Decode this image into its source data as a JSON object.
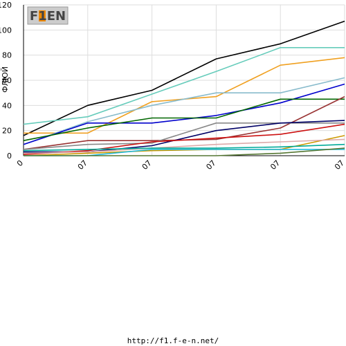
{
  "logo": {
    "text": "F1EN"
  },
  "footer": {
    "url": "http://f1.f-e-n.net/"
  },
  "chart_data": {
    "type": "line",
    "ylabel": "ФЛЮЙ",
    "xlabel": "",
    "ylim": [
      0,
      120
    ],
    "yticks": [
      0,
      20,
      40,
      60,
      80,
      100,
      120
    ],
    "x": [
      0,
      1,
      2,
      3,
      4,
      5
    ],
    "xtick_labels": [
      "0",
      "07",
      "07",
      "07",
      "07",
      "07"
    ],
    "grid": true,
    "legend": "none",
    "series": [
      {
        "color": "#000000",
        "values": [
          16,
          40,
          52,
          77,
          89,
          107
        ]
      },
      {
        "color": "#66ccbb",
        "values": [
          25,
          31,
          49,
          67,
          86,
          86
        ]
      },
      {
        "color": "#f0a020",
        "values": [
          18,
          18,
          43,
          47,
          72,
          78
        ]
      },
      {
        "color": "#88bbcc",
        "values": [
          9,
          27,
          40,
          50,
          50,
          62
        ]
      },
      {
        "color": "#0000cc",
        "values": [
          9,
          26,
          26,
          32,
          42,
          57
        ]
      },
      {
        "color": "#006600",
        "values": [
          12,
          22,
          30,
          30,
          45,
          45
        ]
      },
      {
        "color": "#993333",
        "values": [
          5,
          12,
          12,
          13,
          22,
          47
        ]
      },
      {
        "color": "#888888",
        "values": [
          5,
          9,
          10,
          26,
          26,
          26
        ]
      },
      {
        "color": "#000066",
        "values": [
          3,
          3,
          8,
          20,
          26,
          28
        ]
      },
      {
        "color": "#cc1111",
        "values": [
          1,
          4,
          11,
          14,
          17,
          25
        ]
      },
      {
        "color": "#cc9900",
        "values": [
          0,
          2,
          4,
          5,
          5,
          16
        ]
      },
      {
        "color": "#ddaaaa",
        "values": [
          2,
          3,
          6,
          9,
          11,
          13
        ]
      },
      {
        "color": "#00aa99",
        "values": [
          4,
          5,
          6,
          6,
          7,
          9
        ]
      },
      {
        "color": "#22bbdd",
        "values": [
          0,
          0,
          5,
          5,
          5,
          5
        ]
      },
      {
        "color": "#557733",
        "values": [
          0,
          0,
          0,
          0,
          2,
          6
        ]
      }
    ]
  }
}
